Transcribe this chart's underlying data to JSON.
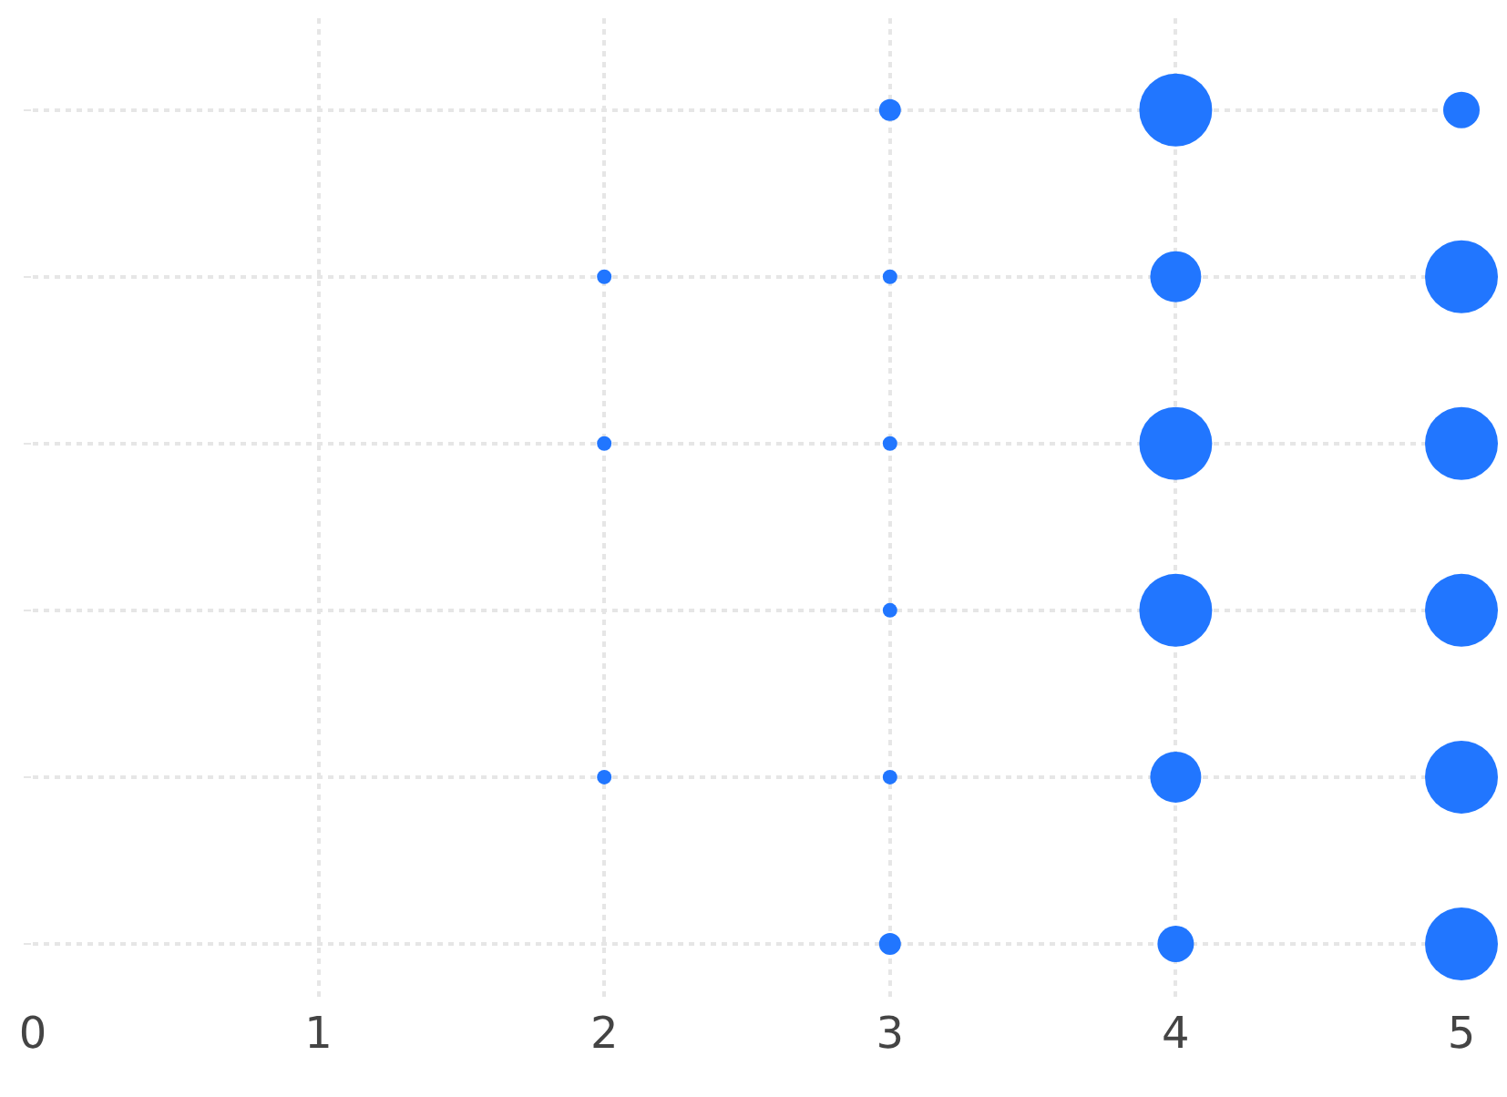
{
  "chart_data": {
    "type": "bubble",
    "orientation": "horizontal",
    "relative": false,
    "categories": [
      null,
      null,
      null,
      null,
      null,
      null
    ],
    "series": [
      {
        "color": "#2176ff",
        "values": [
          null,
          2,
          2,
          null,
          2,
          null
        ],
        "sizes": [
          null,
          0.04,
          0.04,
          null,
          0.04,
          null
        ]
      },
      {
        "color": "#2176ff",
        "values": [
          3,
          3,
          3,
          3,
          3,
          3
        ],
        "sizes": [
          0.09,
          0.04,
          0.04,
          0.04,
          0.04,
          0.09
        ]
      },
      {
        "color": "#2176ff",
        "values": [
          4,
          4,
          4,
          4,
          4,
          4
        ],
        "sizes": [
          1,
          0.49,
          1,
          1,
          0.49,
          0.25
        ]
      },
      {
        "color": "#2176ff",
        "values": [
          5,
          5,
          5,
          5,
          5,
          5
        ],
        "sizes": [
          0.25,
          1,
          1,
          1,
          1,
          1
        ]
      }
    ],
    "xlim": [
      0,
      5
    ],
    "xticks": [
      0,
      1,
      2,
      3,
      4,
      5
    ],
    "grid": true,
    "marker": "circle",
    "tick_labels": "x"
  }
}
